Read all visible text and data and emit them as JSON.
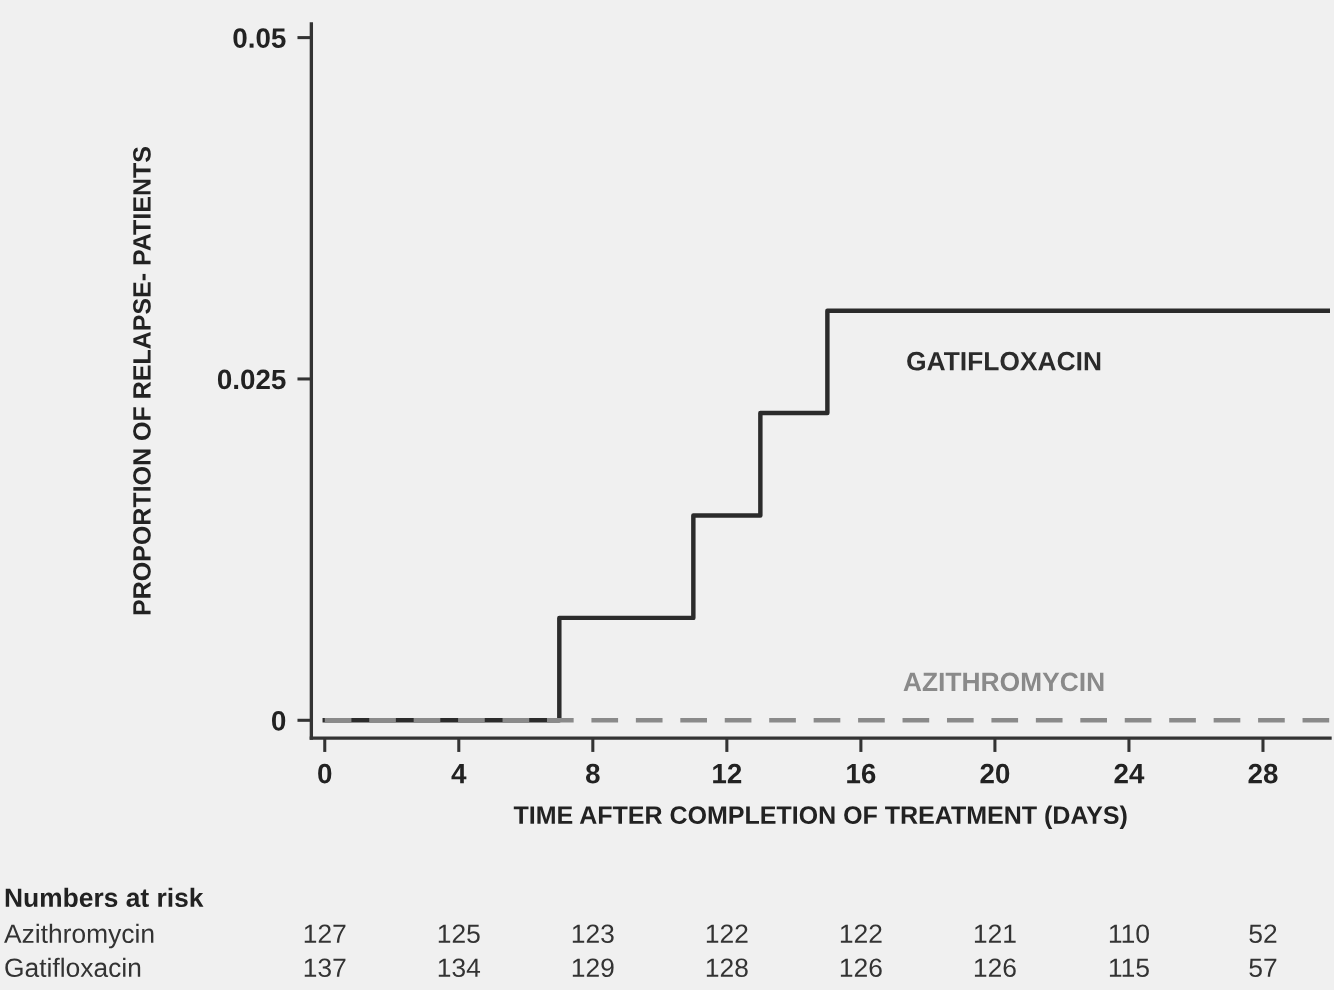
{
  "chart_data": {
    "type": "step",
    "xlabel": "TIME AFTER COMPLETION OF TREATMENT (DAYS)",
    "ylabel": "PROPORTION OF RELAPSE- PATIENTS",
    "series": [
      {
        "name": "GATIFLOXACIN",
        "color": "#2b2b2b",
        "line_style": "solid",
        "x": [
          0,
          7,
          11,
          13,
          15,
          30
        ],
        "values": [
          0,
          0.0075,
          0.015,
          0.0225,
          0.03,
          0.03
        ]
      },
      {
        "name": "AZITHROMYCIN",
        "color": "#8a8a8a",
        "line_style": "dashed",
        "x": [
          0,
          30
        ],
        "values": [
          0,
          0
        ]
      }
    ],
    "xlim": [
      -0.4,
      30
    ],
    "xticks": [
      0,
      4,
      8,
      12,
      16,
      20,
      24,
      28
    ],
    "ylim": [
      -0.0013,
      0.051
    ],
    "yticks": [
      0,
      0.025,
      0.05
    ],
    "annotations": [
      "Numbers at risk",
      "Azithromycin",
      "127",
      "125",
      "123",
      "122",
      "122",
      "121",
      "110",
      "52",
      "Gatifloxacin",
      "137",
      "134",
      "129",
      "128",
      "126",
      "126",
      "115",
      "57"
    ]
  }
}
